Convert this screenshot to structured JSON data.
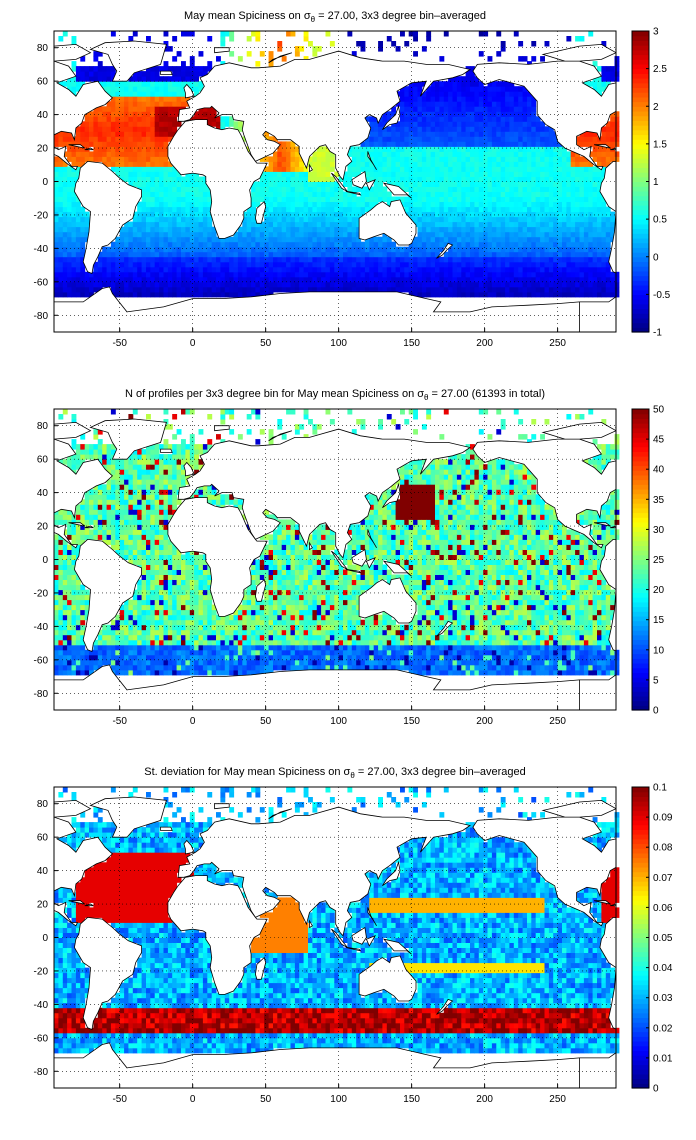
{
  "figure": {
    "background": "#ffffff"
  },
  "chart_data": [
    {
      "type": "heatmap",
      "title": "May mean Spiciness on σ",
      "title_sub": "θ",
      "title_tail": " = 27.00, 3x3 degree bin–averaged",
      "xlim": [
        -95,
        290
      ],
      "ylim": [
        -90,
        90
      ],
      "x_ticks": [
        -50,
        0,
        50,
        100,
        150,
        200,
        250
      ],
      "y_ticks": [
        -80,
        -60,
        -40,
        -20,
        0,
        20,
        40,
        60,
        80
      ],
      "grid": true,
      "colorbar": {
        "min": -1,
        "max": 3,
        "ticks": [
          -1,
          -0.5,
          0,
          0.5,
          1,
          1.5,
          2,
          2.5,
          3
        ]
      },
      "field": "spiciness"
    },
    {
      "type": "heatmap",
      "title": "N of profiles per 3x3 degree bin for May mean Spiciness on σ",
      "title_sub": "θ",
      "title_tail": " = 27.00 (61393 in total)",
      "xlim": [
        -95,
        290
      ],
      "ylim": [
        -90,
        90
      ],
      "x_ticks": [
        -50,
        0,
        50,
        100,
        150,
        200,
        250
      ],
      "y_ticks": [
        -80,
        -60,
        -40,
        -20,
        0,
        20,
        40,
        60,
        80
      ],
      "grid": true,
      "colorbar": {
        "min": 0,
        "max": 50,
        "ticks": [
          0,
          5,
          10,
          15,
          20,
          25,
          30,
          35,
          40,
          45,
          50
        ]
      },
      "field": "count"
    },
    {
      "type": "heatmap",
      "title": "St. deviation for May mean Spiciness on σ",
      "title_sub": "θ",
      "title_tail": " = 27.00, 3x3 degree bin–averaged",
      "xlim": [
        -95,
        290
      ],
      "ylim": [
        -90,
        90
      ],
      "x_ticks": [
        -50,
        0,
        50,
        100,
        150,
        200,
        250
      ],
      "y_ticks": [
        -80,
        -60,
        -40,
        -20,
        0,
        20,
        40,
        60,
        80
      ],
      "grid": true,
      "colorbar": {
        "min": 0,
        "max": 0.1,
        "ticks": [
          0,
          0.01,
          0.02,
          0.03,
          0.04,
          0.05,
          0.06,
          0.07,
          0.08,
          0.09,
          0.1
        ]
      },
      "field": "stdev"
    }
  ]
}
